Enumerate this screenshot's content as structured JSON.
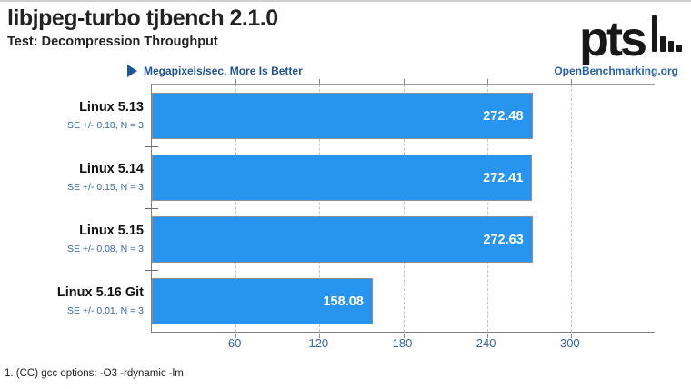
{
  "header": {
    "title": "libjpeg-turbo tjbench 2.1.0",
    "subtitle": "Test: Decompression Throughput",
    "logo_text": "pts"
  },
  "legend": {
    "label": "Megapixels/sec, More Is Better",
    "watermark": "OpenBenchmarking.org"
  },
  "chart_data": {
    "type": "bar",
    "orientation": "horizontal",
    "title": "libjpeg-turbo tjbench 2.1.0",
    "subtitle": "Test: Decompression Throughput",
    "unit": "Megapixels/sec",
    "better": "More Is Better",
    "categories": [
      "Linux 5.13",
      "Linux 5.14",
      "Linux 5.15",
      "Linux 5.16 Git"
    ],
    "values": [
      272.48,
      272.41,
      272.63,
      158.08
    ],
    "value_labels": [
      "272.48",
      "272.41",
      "272.63",
      "158.08"
    ],
    "se_labels": [
      "SE +/- 0.10, N = 3",
      "SE +/- 0.15, N = 3",
      "SE +/- 0.08, N = 3",
      "SE +/- 0.01, N = 3"
    ],
    "xlim": [
      0,
      360
    ],
    "x_ticks": [
      60,
      120,
      180,
      240,
      300
    ],
    "grid": "vertical-dashed",
    "legend_position": "top-left",
    "bar_color": "#2794F0"
  },
  "footnote": "1. (CC) gcc options: -O3 -rdynamic -lm",
  "colors": {
    "bar": "#2794F0",
    "legend_blue": "#1F5496",
    "watermark_blue": "#2A63AC",
    "tick_label_blue": "#3465A4"
  }
}
